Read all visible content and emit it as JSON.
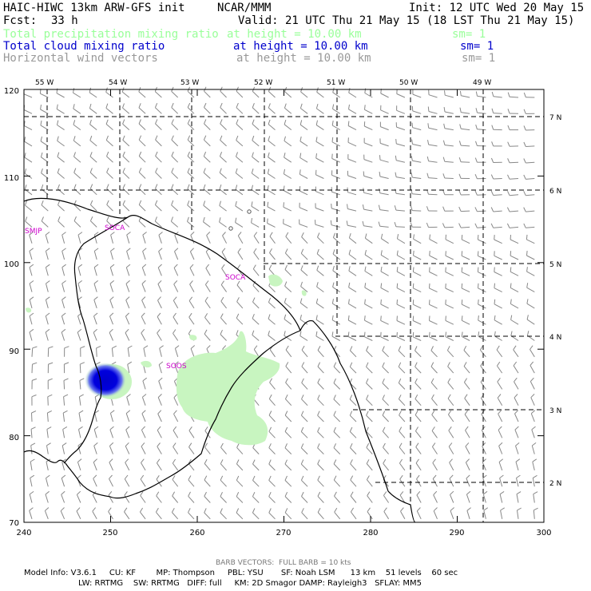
{
  "header": {
    "title": "HAIC-HIWC 13km ARW-GFS init",
    "org": "NCAR/MMM",
    "init": "Init: 12 UTC Wed 20 May 15",
    "fcst_label": "Fcst:",
    "fcst_value": "33 h",
    "valid": "Valid: 21 UTC Thu 21 May 15 (18 LST Thu 21 May 15)"
  },
  "fields": [
    {
      "name": "Total precipitation mixing ratio",
      "height": "at height = 10.00 km",
      "sm": "sm= 1",
      "color": "#99ff99"
    },
    {
      "name": "Total cloud mixing ratio",
      "height": "at height = 10.00 km",
      "sm": "sm= 1",
      "color": "#0000cc"
    },
    {
      "name": "Horizontal wind vectors",
      "height": "at height = 10.00 km",
      "sm": "sm= 1",
      "color": "#999999"
    }
  ],
  "map": {
    "top_lon_labels": [
      "55 W",
      "54 W",
      "53 W",
      "52 W",
      "51 W",
      "50 W",
      "49 W"
    ],
    "right_lat_labels": [
      "7 N",
      "6 N",
      "5 N",
      "4 N",
      "3 N",
      "2 N"
    ],
    "left_axis_ticks": [
      "120",
      "110",
      "100",
      "90",
      "80",
      "70"
    ],
    "bottom_axis_ticks": [
      "240",
      "250",
      "260",
      "270",
      "280",
      "290",
      "300"
    ],
    "stations": [
      "SMJP",
      "SOCA",
      "SOCA",
      "SOOS"
    ],
    "precip_color": "#c8f5c0",
    "cloud_color": "#0000cc"
  },
  "footer": {
    "barb_note": "BARB VECTORS:  FULL BARB = 10 kts",
    "model_line1": "Model Info: V3.6.1     CU: KF        MP: Thompson     PBL: YSU       SF: Noah LSM      13 km    51 levels    60 sec",
    "model_line2": "LW: RRTMG    SW: RRTMG   DIFF: full     KM: 2D Smagor DAMP: Rayleigh3   SFLAY: MM5"
  }
}
